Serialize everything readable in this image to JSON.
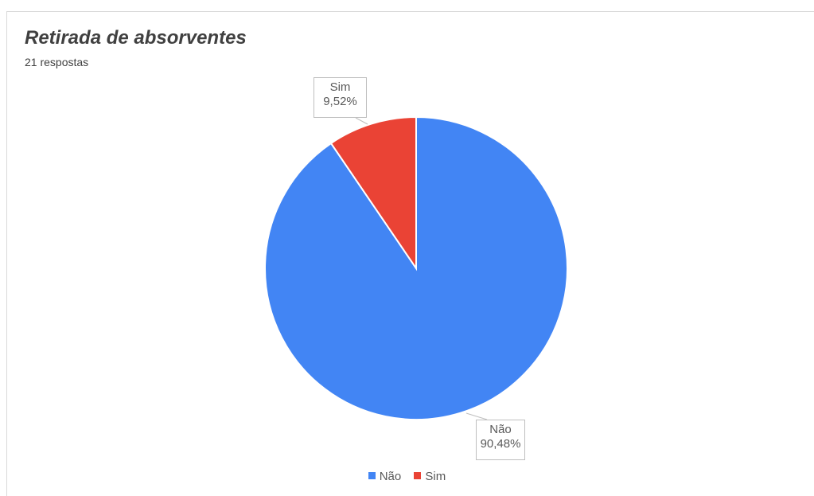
{
  "chart_data": {
    "type": "pie",
    "title": "Retirada de absorventes",
    "subtitle": "21 respostas",
    "slices": [
      {
        "label": "Não",
        "value": 90.48,
        "value_text": "90,48%",
        "color": "#4285f4"
      },
      {
        "label": "Sim",
        "value": 9.52,
        "value_text": "9,52%",
        "color": "#ea4335"
      }
    ],
    "legend": {
      "position": "bottom",
      "items": [
        "Não",
        "Sim"
      ]
    }
  }
}
